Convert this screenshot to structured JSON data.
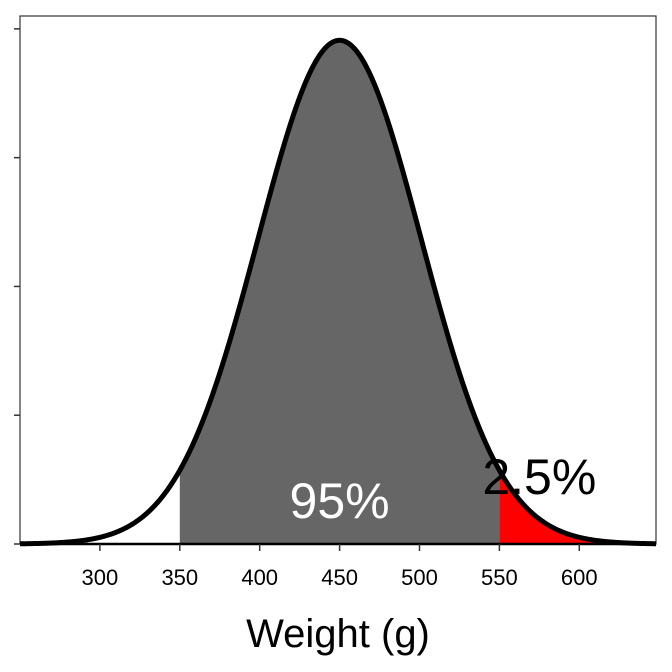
{
  "chart_data": {
    "type": "area",
    "title": "",
    "xlabel": "Weight (g)",
    "ylabel": "",
    "distribution": {
      "family": "normal",
      "mean": 450,
      "sd": 51
    },
    "xlim": [
      250,
      648
    ],
    "ylim": [
      0,
      0.0082
    ],
    "x_ticks": [
      300,
      350,
      400,
      450,
      500,
      550,
      600
    ],
    "x_tick_labels": [
      "300",
      "350",
      "400",
      "450",
      "500",
      "550",
      "600"
    ],
    "y_ticks": [
      0,
      0.002,
      0.004,
      0.006,
      0.008
    ],
    "y_tick_labels": [],
    "shaded_regions": [
      {
        "from": 350,
        "to": 550,
        "color": "#666666",
        "label": "95%"
      },
      {
        "from": 550,
        "to": 648,
        "color": "#ff0000",
        "label": "2.5%"
      }
    ],
    "annotations": [
      {
        "text": "95%",
        "color": "#ffffff",
        "x": 450
      },
      {
        "text": "2.5%",
        "color": "#000000",
        "x": 575
      }
    ],
    "grid": false,
    "legend": "none",
    "colors": {
      "curve": "#000000",
      "center_fill": "#666666",
      "tail_fill": "#ff0000",
      "frame": "#333333"
    }
  }
}
